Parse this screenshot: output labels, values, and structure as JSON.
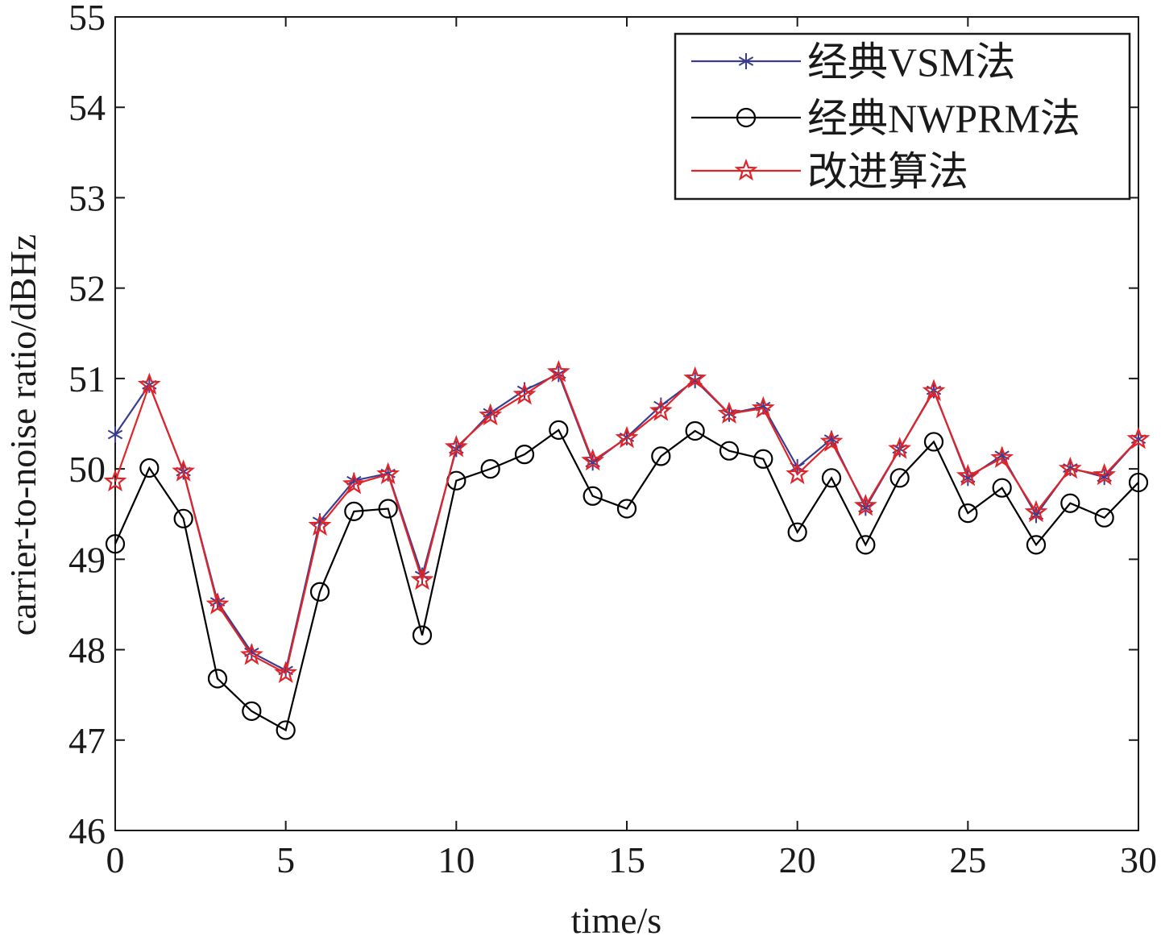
{
  "chart_data": {
    "type": "line",
    "xlabel": "time/s",
    "ylabel": "carrier-to-noise ratio/dBHz",
    "xlim": [
      0,
      30
    ],
    "ylim": [
      46,
      55
    ],
    "xticks": [
      0,
      5,
      10,
      15,
      20,
      25,
      30
    ],
    "yticks": [
      46,
      47,
      48,
      49,
      50,
      51,
      52,
      53,
      54,
      55
    ],
    "grid": false,
    "legend_position": "top-right",
    "x": [
      0,
      1,
      2,
      3,
      4,
      5,
      6,
      7,
      8,
      9,
      10,
      11,
      12,
      13,
      14,
      15,
      16,
      17,
      18,
      19,
      20,
      21,
      22,
      23,
      24,
      25,
      26,
      27,
      28,
      29,
      30
    ],
    "series": [
      {
        "name": "经典VSM法",
        "color": "#3a3d8f",
        "marker": "asterisk",
        "values": [
          50.38,
          50.93,
          49.97,
          48.53,
          47.97,
          47.77,
          49.42,
          49.87,
          49.95,
          48.82,
          50.22,
          50.62,
          50.87,
          51.05,
          50.07,
          50.35,
          50.7,
          50.98,
          50.61,
          50.69,
          50.02,
          50.33,
          49.57,
          50.22,
          50.87,
          49.9,
          50.15,
          49.49,
          50.01,
          49.91,
          50.33
        ]
      },
      {
        "name": "经典NWPRM法",
        "color": "#000000",
        "marker": "circle",
        "values": [
          49.17,
          50.01,
          49.45,
          47.68,
          47.32,
          47.11,
          48.64,
          49.53,
          49.56,
          48.16,
          49.87,
          50.0,
          50.16,
          50.43,
          49.7,
          49.56,
          50.14,
          50.42,
          50.2,
          50.11,
          49.3,
          49.9,
          49.16,
          49.9,
          50.3,
          49.51,
          49.79,
          49.16,
          49.62,
          49.46,
          49.85
        ]
      },
      {
        "name": "改进算法",
        "color": "#e0242a",
        "marker": "star",
        "values": [
          49.86,
          50.93,
          49.97,
          48.5,
          47.94,
          47.74,
          49.37,
          49.83,
          49.94,
          48.77,
          50.24,
          50.59,
          50.82,
          51.07,
          50.09,
          50.34,
          50.64,
          51.0,
          50.61,
          50.67,
          49.94,
          50.3,
          49.59,
          50.22,
          50.86,
          49.92,
          50.12,
          49.52,
          50.0,
          49.93,
          50.33
        ]
      }
    ]
  }
}
